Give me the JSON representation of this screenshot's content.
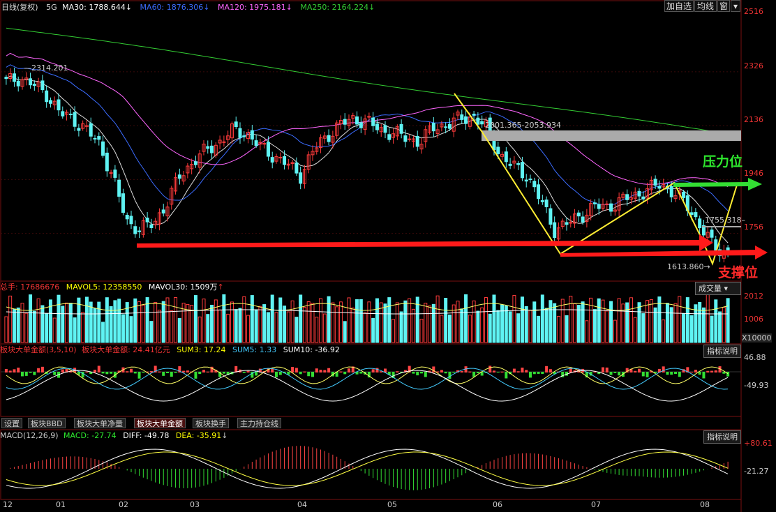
{
  "header": {
    "title": "日线(复权)",
    "period": "5G",
    "ma30": {
      "label": "MA30: 1788.644",
      "arrow": "↓",
      "color": "#ffffff"
    },
    "ma60": {
      "label": "MA60: 1876.306",
      "arrow": "↓",
      "color": "#3b6cff"
    },
    "ma120": {
      "label": "MA120: 1975.181",
      "arrow": "↓",
      "color": "#ff66ff"
    },
    "ma250": {
      "label": "MA250: 2164.224",
      "arrow": "↓",
      "color": "#33cc33"
    }
  },
  "toolbar": {
    "add_fav": "加自选",
    "ma_line": "均线",
    "window": "窗"
  },
  "price_axis": [
    "2516",
    "2326",
    "2136",
    "1946",
    "1756"
  ],
  "annotations": {
    "high_label": "2314.201",
    "box_label": "2001.365-2053.934",
    "mid_label": "1755.318",
    "low_label": "1613.860",
    "resistance": "压力位",
    "support": "支撑位"
  },
  "volume_panel": {
    "total": "总手: 17686676",
    "mavol5": "MAVOL5: 12358550",
    "mavol30": "MAVOL30: 1509万",
    "axis": [
      "2012",
      "1006"
    ],
    "unit": "X10000",
    "dropdown": "成交量"
  },
  "fund_panel": {
    "title": "板块大单金额(3,5,10)",
    "amount": "板块大单金额: 24.41亿元",
    "sum3": "SUM3: 17.24",
    "sum5": "SUM5: 1.33",
    "sum10": "SUM10: -36.92",
    "axis": [
      "46.88",
      "-49.93"
    ],
    "help": "指标说明"
  },
  "tabs": [
    "设置",
    "板块BBD",
    "板块大单净量",
    "板块大单金额",
    "板块换手",
    "主力持仓线"
  ],
  "macd_panel": {
    "title": "MACD(12,26,9)",
    "macd": "MACD: -27.74",
    "diff": "DIFF: -49.78",
    "dea": "DEA: -35.91",
    "axis": [
      "+80.61",
      "-21.27"
    ],
    "help": "指标说明"
  },
  "x_axis": [
    "12",
    "01",
    "02",
    "03",
    "04",
    "05",
    "06",
    "07",
    "08"
  ],
  "chart_data": {
    "type": "candlestick",
    "ylim": [
      1600,
      2530
    ],
    "ma_series": [
      "MA30",
      "MA60",
      "MA120",
      "MA250"
    ],
    "close_path": [
      2290,
      2305,
      2280,
      2250,
      2180,
      2160,
      2120,
      2070,
      1950,
      1800,
      1770,
      1790,
      1860,
      1960,
      2010,
      2050,
      2080,
      2120,
      2110,
      2060,
      2030,
      2000,
      1960,
      2050,
      2100,
      2140,
      2160,
      2150,
      2120,
      2110,
      2090,
      2080,
      2130,
      2140,
      2160,
      2170,
      2120,
      2030,
      1990,
      1960,
      1870,
      1770,
      1790,
      1820,
      1850,
      1850,
      1870,
      1890,
      1910,
      1930,
      1900,
      1850,
      1780,
      1700,
      1690
    ],
    "support_level": 1660,
    "resistance_level": 1935
  }
}
